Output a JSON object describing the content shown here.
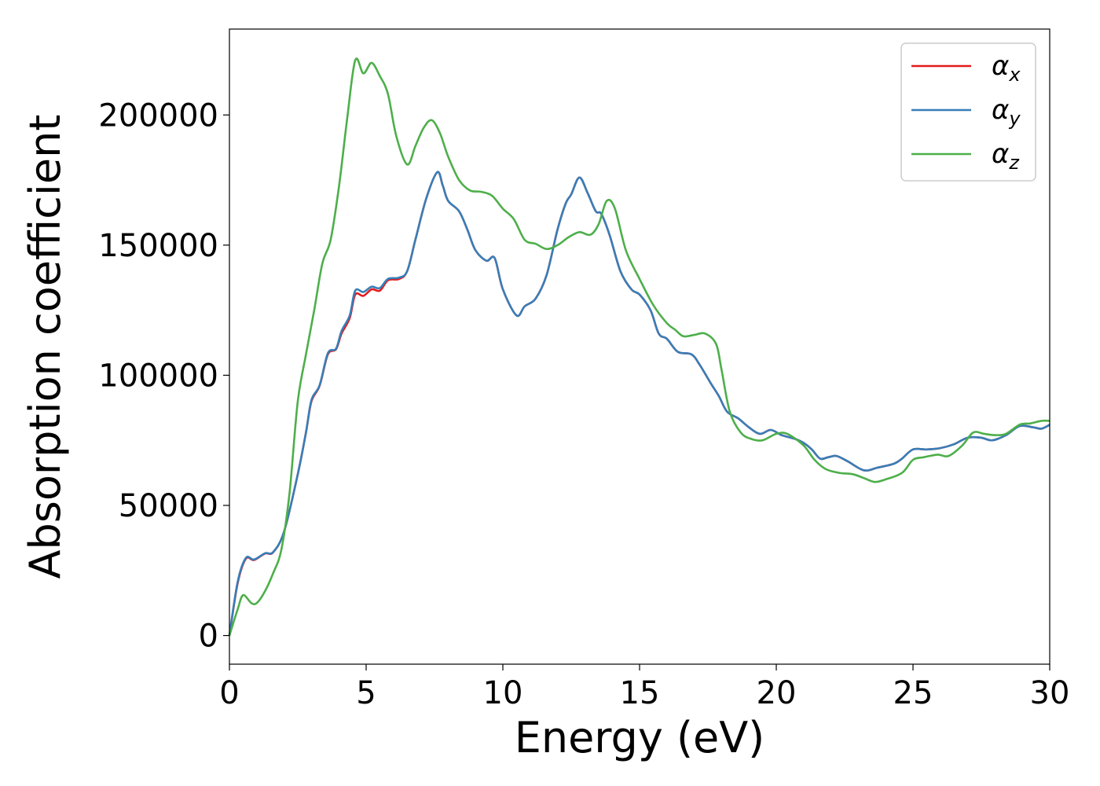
{
  "chart_data": {
    "type": "line",
    "xlabel": "Energy (eV)",
    "ylabel": "Absorption coefficient",
    "xlim": [
      0,
      30
    ],
    "ylim": [
      -11000,
      233000
    ],
    "xticks": [
      "0",
      "5",
      "10",
      "15",
      "20",
      "25",
      "30"
    ],
    "yticks": [
      "0",
      "50000",
      "100000",
      "150000",
      "200000"
    ],
    "grid": false,
    "legend_position": "top-right",
    "series": [
      {
        "name": "α",
        "subscript": "x",
        "color": "#e41a1c",
        "points": [
          [
            0,
            0
          ],
          [
            0.3,
            20000
          ],
          [
            0.6,
            29500
          ],
          [
            0.9,
            29000
          ],
          [
            1.3,
            31500
          ],
          [
            1.6,
            32000
          ],
          [
            2.0,
            40000
          ],
          [
            2.5,
            62000
          ],
          [
            2.8,
            78000
          ],
          [
            3.0,
            90000
          ],
          [
            3.3,
            96000
          ],
          [
            3.6,
            108000
          ],
          [
            3.9,
            110000
          ],
          [
            4.1,
            116000
          ],
          [
            4.4,
            122000
          ],
          [
            4.6,
            131000
          ],
          [
            4.9,
            130500
          ],
          [
            5.2,
            133000
          ],
          [
            5.5,
            132500
          ],
          [
            5.8,
            136500
          ],
          [
            6.2,
            137000
          ],
          [
            6.5,
            140000
          ],
          [
            6.8,
            152000
          ],
          [
            7.2,
            168000
          ],
          [
            7.6,
            178000
          ],
          [
            7.8,
            173000
          ],
          [
            8.0,
            167000
          ],
          [
            8.4,
            163000
          ],
          [
            8.7,
            156000
          ],
          [
            9.0,
            148000
          ],
          [
            9.4,
            144000
          ],
          [
            9.7,
            145000
          ],
          [
            10.0,
            133000
          ],
          [
            10.5,
            123000
          ],
          [
            10.8,
            126500
          ],
          [
            11.2,
            129500
          ],
          [
            11.6,
            138500
          ],
          [
            12.0,
            156000
          ],
          [
            12.3,
            166000
          ],
          [
            12.5,
            169500
          ],
          [
            12.8,
            176000
          ],
          [
            13.1,
            170000
          ],
          [
            13.4,
            163000
          ],
          [
            13.6,
            162000
          ],
          [
            13.9,
            154000
          ],
          [
            14.3,
            140000
          ],
          [
            14.7,
            133000
          ],
          [
            15.0,
            131000
          ],
          [
            15.4,
            125000
          ],
          [
            15.7,
            116000
          ],
          [
            16.0,
            114000
          ],
          [
            16.4,
            109000
          ],
          [
            16.9,
            108000
          ],
          [
            17.2,
            104000
          ],
          [
            17.6,
            97000
          ],
          [
            17.9,
            92000
          ],
          [
            18.2,
            86000
          ],
          [
            18.6,
            83500
          ],
          [
            19.0,
            80000
          ],
          [
            19.4,
            77500
          ],
          [
            19.8,
            79000
          ],
          [
            20.2,
            77000
          ],
          [
            20.7,
            75500
          ],
          [
            21.0,
            74000
          ],
          [
            21.3,
            71500
          ],
          [
            21.6,
            68000
          ],
          [
            21.9,
            68500
          ],
          [
            22.2,
            69000
          ],
          [
            22.6,
            67000
          ],
          [
            23.2,
            63500
          ],
          [
            23.7,
            64500
          ],
          [
            24.3,
            66000
          ],
          [
            24.6,
            68000
          ],
          [
            25.0,
            71500
          ],
          [
            25.5,
            71500
          ],
          [
            26.0,
            72000
          ],
          [
            26.5,
            73500
          ],
          [
            27.0,
            76000
          ],
          [
            27.5,
            76000
          ],
          [
            27.9,
            75000
          ],
          [
            28.4,
            77000
          ],
          [
            28.9,
            80500
          ],
          [
            29.4,
            80000
          ],
          [
            29.7,
            79500
          ],
          [
            30.0,
            81000
          ]
        ]
      },
      {
        "name": "α",
        "subscript": "y",
        "color": "#377eb8",
        "points": [
          [
            0,
            0
          ],
          [
            0.3,
            20500
          ],
          [
            0.6,
            29800
          ],
          [
            0.9,
            29200
          ],
          [
            1.3,
            31600
          ],
          [
            1.6,
            32100
          ],
          [
            2.0,
            40000
          ],
          [
            2.5,
            62000
          ],
          [
            2.8,
            78000
          ],
          [
            3.0,
            90500
          ],
          [
            3.3,
            96200
          ],
          [
            3.6,
            108500
          ],
          [
            3.9,
            110200
          ],
          [
            4.1,
            117000
          ],
          [
            4.4,
            123000
          ],
          [
            4.6,
            132500
          ],
          [
            4.9,
            132000
          ],
          [
            5.2,
            134000
          ],
          [
            5.5,
            133500
          ],
          [
            5.8,
            137000
          ],
          [
            6.2,
            137500
          ],
          [
            6.5,
            140000
          ],
          [
            6.8,
            152000
          ],
          [
            7.2,
            168000
          ],
          [
            7.6,
            178000
          ],
          [
            7.8,
            173000
          ],
          [
            8.0,
            167000
          ],
          [
            8.4,
            163000
          ],
          [
            8.7,
            156000
          ],
          [
            9.0,
            148000
          ],
          [
            9.4,
            144000
          ],
          [
            9.7,
            145000
          ],
          [
            10.0,
            133000
          ],
          [
            10.5,
            123000
          ],
          [
            10.8,
            126500
          ],
          [
            11.2,
            129500
          ],
          [
            11.6,
            138500
          ],
          [
            12.0,
            156000
          ],
          [
            12.3,
            166000
          ],
          [
            12.5,
            169500
          ],
          [
            12.8,
            176000
          ],
          [
            13.1,
            170000
          ],
          [
            13.4,
            163000
          ],
          [
            13.6,
            162000
          ],
          [
            13.9,
            154000
          ],
          [
            14.3,
            140000
          ],
          [
            14.7,
            133000
          ],
          [
            15.0,
            131000
          ],
          [
            15.4,
            125000
          ],
          [
            15.7,
            116000
          ],
          [
            16.0,
            114000
          ],
          [
            16.4,
            109000
          ],
          [
            16.9,
            108000
          ],
          [
            17.2,
            104000
          ],
          [
            17.6,
            97000
          ],
          [
            17.9,
            92000
          ],
          [
            18.2,
            86000
          ],
          [
            18.6,
            83500
          ],
          [
            19.0,
            80000
          ],
          [
            19.4,
            77500
          ],
          [
            19.8,
            79000
          ],
          [
            20.2,
            77000
          ],
          [
            20.7,
            75500
          ],
          [
            21.0,
            74000
          ],
          [
            21.3,
            71500
          ],
          [
            21.6,
            68000
          ],
          [
            21.9,
            68500
          ],
          [
            22.2,
            69000
          ],
          [
            22.6,
            67000
          ],
          [
            23.2,
            63500
          ],
          [
            23.7,
            64500
          ],
          [
            24.3,
            66000
          ],
          [
            24.6,
            68000
          ],
          [
            25.0,
            71500
          ],
          [
            25.5,
            71500
          ],
          [
            26.0,
            72000
          ],
          [
            26.5,
            73500
          ],
          [
            27.0,
            76000
          ],
          [
            27.5,
            76000
          ],
          [
            27.9,
            75000
          ],
          [
            28.4,
            77000
          ],
          [
            28.9,
            80500
          ],
          [
            29.4,
            80000
          ],
          [
            29.7,
            79500
          ],
          [
            30.0,
            81000
          ]
        ]
      },
      {
        "name": "α",
        "subscript": "z",
        "color": "#4daf4a",
        "points": [
          [
            0,
            0
          ],
          [
            0.3,
            10000
          ],
          [
            0.5,
            15500
          ],
          [
            0.8,
            12500
          ],
          [
            1.0,
            12500
          ],
          [
            1.3,
            17000
          ],
          [
            1.6,
            24000
          ],
          [
            1.9,
            33000
          ],
          [
            2.2,
            55000
          ],
          [
            2.5,
            90000
          ],
          [
            2.8,
            108000
          ],
          [
            3.1,
            125000
          ],
          [
            3.4,
            143000
          ],
          [
            3.7,
            152000
          ],
          [
            4.0,
            172000
          ],
          [
            4.3,
            198000
          ],
          [
            4.6,
            221000
          ],
          [
            4.9,
            216000
          ],
          [
            5.2,
            220000
          ],
          [
            5.5,
            215000
          ],
          [
            5.8,
            208000
          ],
          [
            6.1,
            192000
          ],
          [
            6.5,
            181000
          ],
          [
            6.8,
            188000
          ],
          [
            7.1,
            195000
          ],
          [
            7.4,
            198000
          ],
          [
            7.7,
            193000
          ],
          [
            8.0,
            184000
          ],
          [
            8.4,
            175000
          ],
          [
            8.8,
            171000
          ],
          [
            9.2,
            170500
          ],
          [
            9.6,
            169000
          ],
          [
            10.0,
            164000
          ],
          [
            10.4,
            160000
          ],
          [
            10.8,
            152000
          ],
          [
            11.2,
            150500
          ],
          [
            11.6,
            148500
          ],
          [
            12.0,
            150000
          ],
          [
            12.4,
            153000
          ],
          [
            12.8,
            155000
          ],
          [
            13.2,
            154000
          ],
          [
            13.5,
            158000
          ],
          [
            13.8,
            167000
          ],
          [
            14.1,
            164000
          ],
          [
            14.5,
            148000
          ],
          [
            15.0,
            137000
          ],
          [
            15.5,
            127000
          ],
          [
            16.0,
            120000
          ],
          [
            16.3,
            117500
          ],
          [
            16.6,
            115000
          ],
          [
            17.0,
            115500
          ],
          [
            17.4,
            116000
          ],
          [
            17.8,
            112000
          ],
          [
            18.0,
            102000
          ],
          [
            18.3,
            86000
          ],
          [
            18.7,
            78000
          ],
          [
            19.1,
            75500
          ],
          [
            19.5,
            75000
          ],
          [
            20.0,
            77500
          ],
          [
            20.4,
            77500
          ],
          [
            21.0,
            73000
          ],
          [
            21.4,
            67500
          ],
          [
            21.8,
            64000
          ],
          [
            22.3,
            62500
          ],
          [
            22.8,
            62000
          ],
          [
            23.2,
            60500
          ],
          [
            23.6,
            59000
          ],
          [
            24.0,
            60000
          ],
          [
            24.6,
            62500
          ],
          [
            25.0,
            67500
          ],
          [
            25.4,
            68500
          ],
          [
            25.9,
            69500
          ],
          [
            26.3,
            69000
          ],
          [
            26.8,
            73000
          ],
          [
            27.2,
            78000
          ],
          [
            27.6,
            77500
          ],
          [
            28.0,
            77000
          ],
          [
            28.4,
            77500
          ],
          [
            28.9,
            81000
          ],
          [
            29.3,
            81500
          ],
          [
            29.7,
            82500
          ],
          [
            30.0,
            82500
          ]
        ]
      }
    ]
  }
}
